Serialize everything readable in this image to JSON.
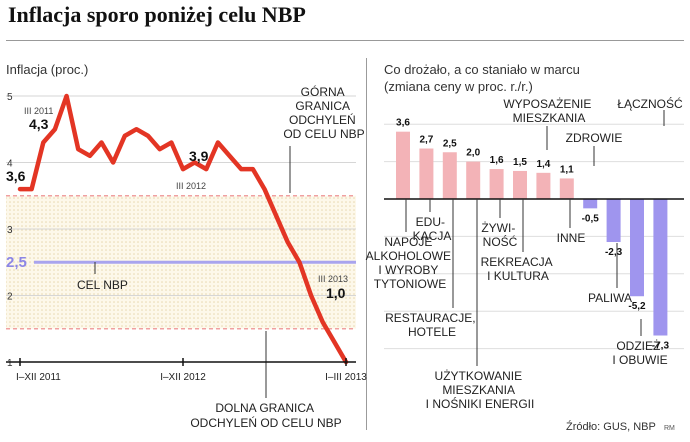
{
  "headline": "Inflacja sporo poniżej celu NBP",
  "source": "Źródło: GUS, NBP",
  "credit": "RM",
  "chart_data": [
    {
      "type": "line",
      "title": "Inflacja (proc.)",
      "yticks": [
        1,
        2,
        3,
        4,
        5
      ],
      "ylim": [
        1,
        5.15
      ],
      "x_labels": [
        "I–XII 2011",
        "I–XII 2012",
        "I–III 2013"
      ],
      "series": [
        {
          "values": [
            3.6,
            3.6,
            4.3,
            4.5,
            5.0,
            4.2,
            4.1,
            4.3,
            4.0,
            4.4,
            4.5,
            4.4,
            4.2,
            4.3,
            3.9,
            4.0,
            3.9,
            4.3,
            4.1,
            3.9,
            3.9,
            3.6,
            3.2,
            2.8,
            2.5,
            2.0,
            1.6,
            1.3,
            1.0
          ]
        }
      ],
      "target": {
        "value": 2.5,
        "value_label": "2,5",
        "label": "CEL NBP"
      },
      "upper_band": {
        "value": 3.5,
        "label": "GÓRNA GRANICA ODCHYLEŃ OD CELU NBP"
      },
      "lower_band": {
        "value": 1.5,
        "label": "DOLNA GRANICA ODCHYLEŃ OD CELU NBP"
      },
      "annotations": [
        {
          "text": "3,6",
          "sub": ""
        },
        {
          "text": "4,3",
          "sub": "III 2011"
        },
        {
          "text": "3,9",
          "sub": "III 2012"
        },
        {
          "text": "1,0",
          "sub": "III 2013"
        }
      ]
    },
    {
      "type": "bar",
      "title": "Co drożało, a co staniało w marcu",
      "subtitle": "(zmiana ceny w proc. r./r.)",
      "colors": {
        "positive": "#f3b3b7",
        "negative": "#9f95ee"
      },
      "bars": [
        {
          "category": "NAPOJE ALKOHOLOWE I WYROBY TYTONIOWE",
          "value": 3.6,
          "label": "3,6"
        },
        {
          "category": "EDUKACJA",
          "value": 2.7,
          "label": "2,7"
        },
        {
          "category": "RESTAURACJE, HOTELE",
          "value": 2.5,
          "label": "2,5"
        },
        {
          "category": "UŻYTKOWANIE MIESZKANIA I NOŚNIKI ENERGII",
          "value": 2.0,
          "label": "2,0"
        },
        {
          "category": "ŻYWNOŚĆ",
          "value": 1.6,
          "label": "1,6"
        },
        {
          "category": "REKREACJA I KULTURA",
          "value": 1.5,
          "label": "1,5"
        },
        {
          "category": "WYPOSAŻENIE MIESZKANIA",
          "value": 1.4,
          "label": "1,4"
        },
        {
          "category": "INNE",
          "value": 1.1,
          "label": "1,1"
        },
        {
          "category": "ZDROWIE",
          "value": -0.5,
          "label": "-0,5"
        },
        {
          "category": "PALIWA",
          "value": -2.3,
          "label": "-2,3"
        },
        {
          "category": "ODZIEŻ I OBUWIE",
          "value": -5.2,
          "label": "-5,2"
        },
        {
          "category": "ŁĄCZNOŚĆ",
          "value": -7.3,
          "label": "-7,3"
        }
      ]
    }
  ]
}
